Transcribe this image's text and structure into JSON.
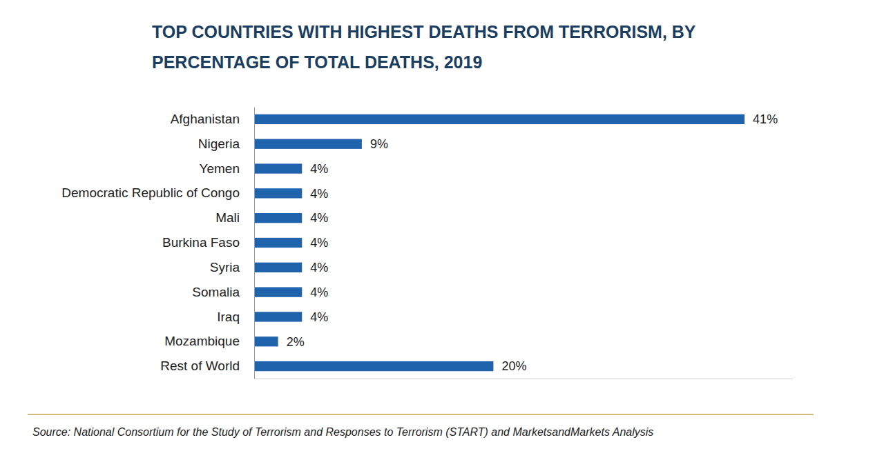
{
  "chart_data": {
    "type": "bar",
    "orientation": "horizontal",
    "title": "TOP COUNTRIES WITH HIGHEST DEATHS FROM TERRORISM, BY PERCENTAGE OF TOTAL DEATHS, 2019",
    "categories": [
      "Afghanistan",
      "Nigeria",
      "Yemen",
      "Democratic Republic of Congo",
      "Mali",
      "Burkina Faso",
      "Syria",
      "Somalia",
      "Iraq",
      "Mozambique",
      "Rest of World"
    ],
    "values": [
      41,
      9,
      4,
      4,
      4,
      4,
      4,
      4,
      4,
      2,
      20
    ],
    "value_labels": [
      "41%",
      "9%",
      "4%",
      "4%",
      "4%",
      "4%",
      "4%",
      "4%",
      "4%",
      "2%",
      "20%"
    ],
    "data_labels": true,
    "color": "#1f63ad",
    "xlim": [
      0,
      45
    ],
    "xticks": [],
    "tick_labels": "y",
    "grid": false,
    "source": "Source: National Consortium for the Study of Terrorism and Responses to Terrorism (START) and MarketsandMarkets Analysis"
  }
}
